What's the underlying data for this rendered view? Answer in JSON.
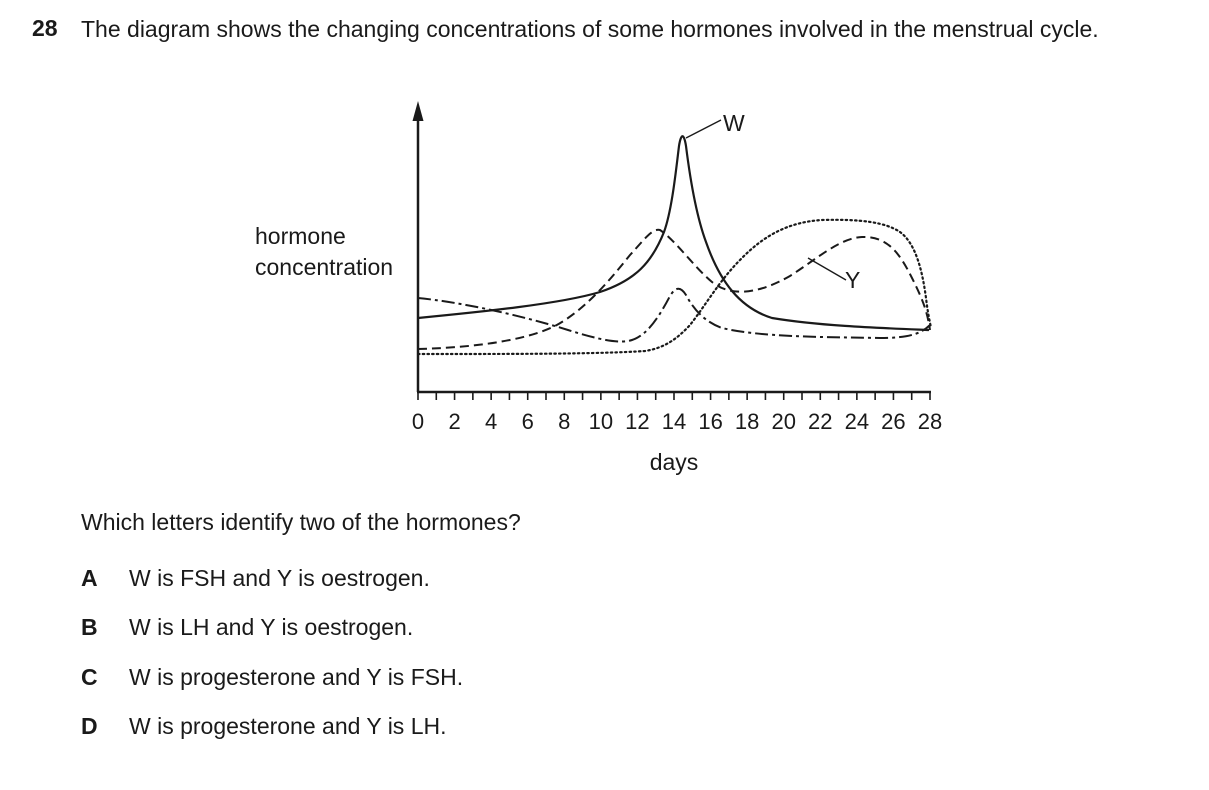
{
  "question": {
    "number": "28",
    "stem": "The diagram shows the changing concentrations of some hormones involved in the menstrual cycle.",
    "prompt": "Which letters identify two of the hormones?"
  },
  "diagram": {
    "y_label_line1": "hormone",
    "y_label_line2": "concentration",
    "x_label": "days",
    "x_ticks": [
      "0",
      "2",
      "4",
      "6",
      "8",
      "10",
      "12",
      "14",
      "16",
      "18",
      "20",
      "22",
      "24",
      "26",
      "28"
    ],
    "label_w": "W",
    "label_y": "Y"
  },
  "options": [
    {
      "letter": "A",
      "text": "W is FSH and Y is oestrogen."
    },
    {
      "letter": "B",
      "text": "W is LH and Y is oestrogen."
    },
    {
      "letter": "C",
      "text": "W is progesterone and Y is FSH."
    },
    {
      "letter": "D",
      "text": "W is progesterone and Y is LH."
    }
  ]
}
